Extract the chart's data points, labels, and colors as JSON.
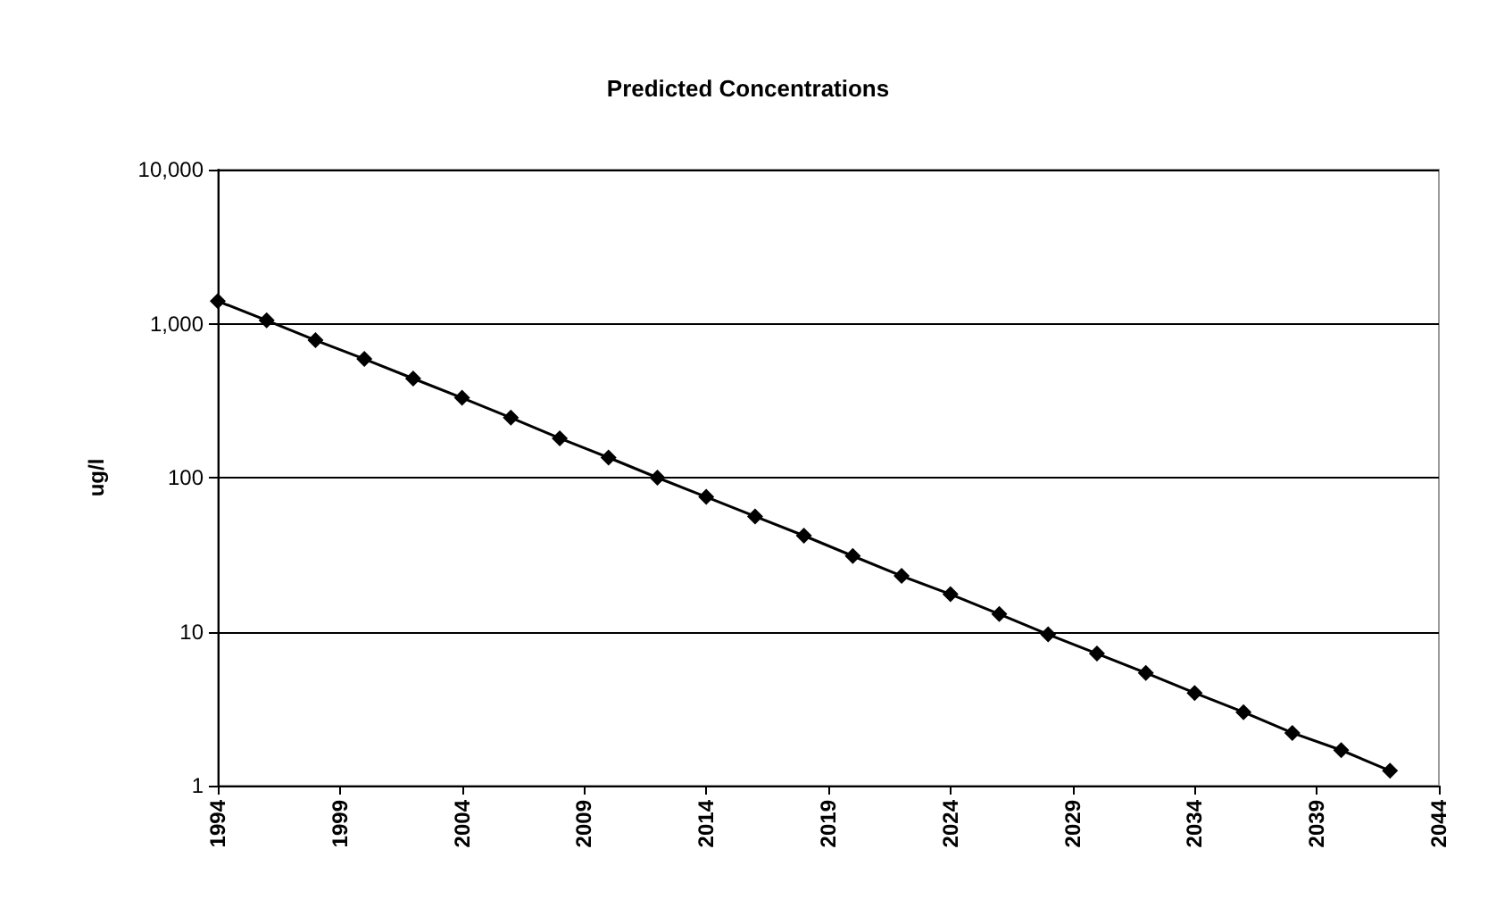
{
  "chart_data": {
    "type": "line",
    "title": "Predicted Concentrations",
    "ylabel": "ug/l",
    "x": [
      1994,
      1996,
      1998,
      2000,
      2002,
      2004,
      2006,
      2008,
      2010,
      2012,
      2014,
      2016,
      2018,
      2020,
      2022,
      2024,
      2026,
      2028,
      2030,
      2032,
      2034,
      2036,
      2038,
      2040,
      2042
    ],
    "series": [
      {
        "color": "#000000",
        "values": [
          1400,
          1050,
          780,
          590,
          440,
          330,
          245,
          180,
          135,
          100,
          75,
          56,
          42,
          31,
          23,
          17.5,
          13,
          9.6,
          7.2,
          5.4,
          4,
          3,
          2.2,
          1.7,
          1.25
        ]
      }
    ],
    "xlim": [
      1994,
      2044
    ],
    "xticks": [
      1994,
      1999,
      2004,
      2009,
      2014,
      2019,
      2024,
      2029,
      2034,
      2039,
      2044
    ],
    "ylim": [
      1,
      10000
    ],
    "yticks": [
      1,
      10,
      100,
      {
        "value": 1000,
        "label": "1,000"
      },
      {
        "value": 10000,
        "label": "10,000"
      }
    ],
    "log": "y",
    "grid": "y",
    "marker": "diamond",
    "line_style": "solid"
  }
}
